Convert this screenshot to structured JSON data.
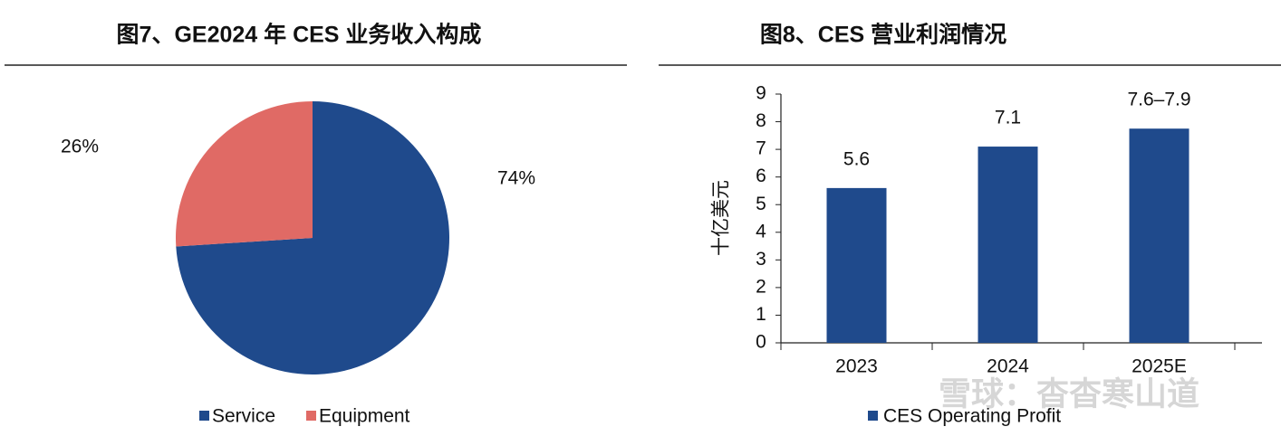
{
  "chart_data": [
    {
      "type": "pie",
      "title": "图7、GE2024 年 CES 业务收入构成",
      "categories": [
        "Service",
        "Equipment"
      ],
      "values": [
        74,
        26
      ],
      "value_labels": [
        "74%",
        "26%"
      ],
      "colors": [
        "#1f4a8c",
        "#e06a65"
      ],
      "legend": "bottom"
    },
    {
      "type": "bar",
      "title": "图8、CES 营业利润情况",
      "y_label": "十亿美元",
      "categories": [
        "2023",
        "2024",
        "2025E"
      ],
      "series": [
        {
          "name": "CES Operating Profit",
          "color": "#1f4a8c",
          "values": [
            5.6,
            7.1,
            7.75
          ],
          "value_labels": [
            "5.6",
            "7.1",
            "7.6–7.9"
          ]
        }
      ],
      "ylim": [
        0,
        9
      ],
      "yticks": [
        0,
        1,
        2,
        3,
        4,
        5,
        6,
        7,
        8,
        9
      ],
      "grid": false,
      "legend": "bottom"
    }
  ],
  "watermark": "雪球：杳杳寒山道"
}
